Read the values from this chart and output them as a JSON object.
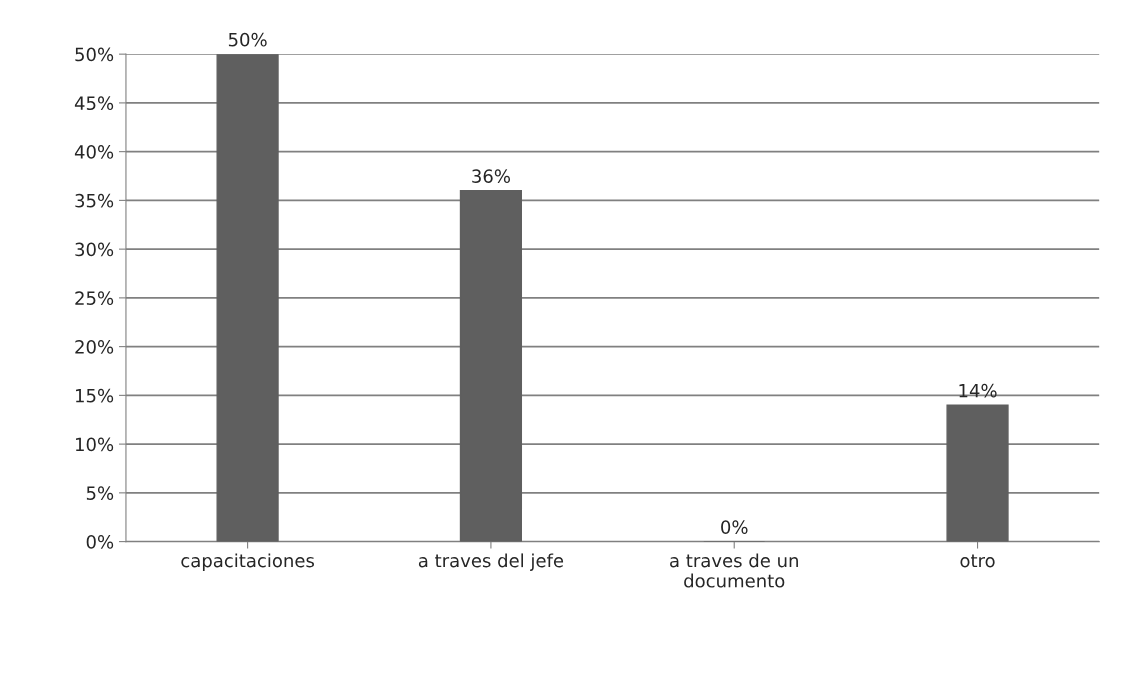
{
  "chart_data": {
    "type": "bar",
    "categories": [
      "capacitaciones",
      "a traves del jefe",
      "a traves de un\ndocumento",
      "otro"
    ],
    "values": [
      50,
      36,
      0,
      14
    ],
    "color": "#5f5f5f",
    "value_labels": [
      "50%",
      "36%",
      "0%",
      "14%"
    ],
    "ylim": [
      0,
      50
    ],
    "yticks": [
      {
        "value": 0,
        "label": "0%"
      },
      {
        "value": 5,
        "label": "5%"
      },
      {
        "value": 10,
        "label": "10%"
      },
      {
        "value": 15,
        "label": "15%"
      },
      {
        "value": 20,
        "label": "20%"
      },
      {
        "value": 25,
        "label": "25%"
      },
      {
        "value": 30,
        "label": "30%"
      },
      {
        "value": 35,
        "label": "35%"
      },
      {
        "value": 40,
        "label": "40%"
      },
      {
        "value": 45,
        "label": "45%"
      },
      {
        "value": 50,
        "label": "50%"
      }
    ],
    "grid": "y",
    "legend": false
  }
}
